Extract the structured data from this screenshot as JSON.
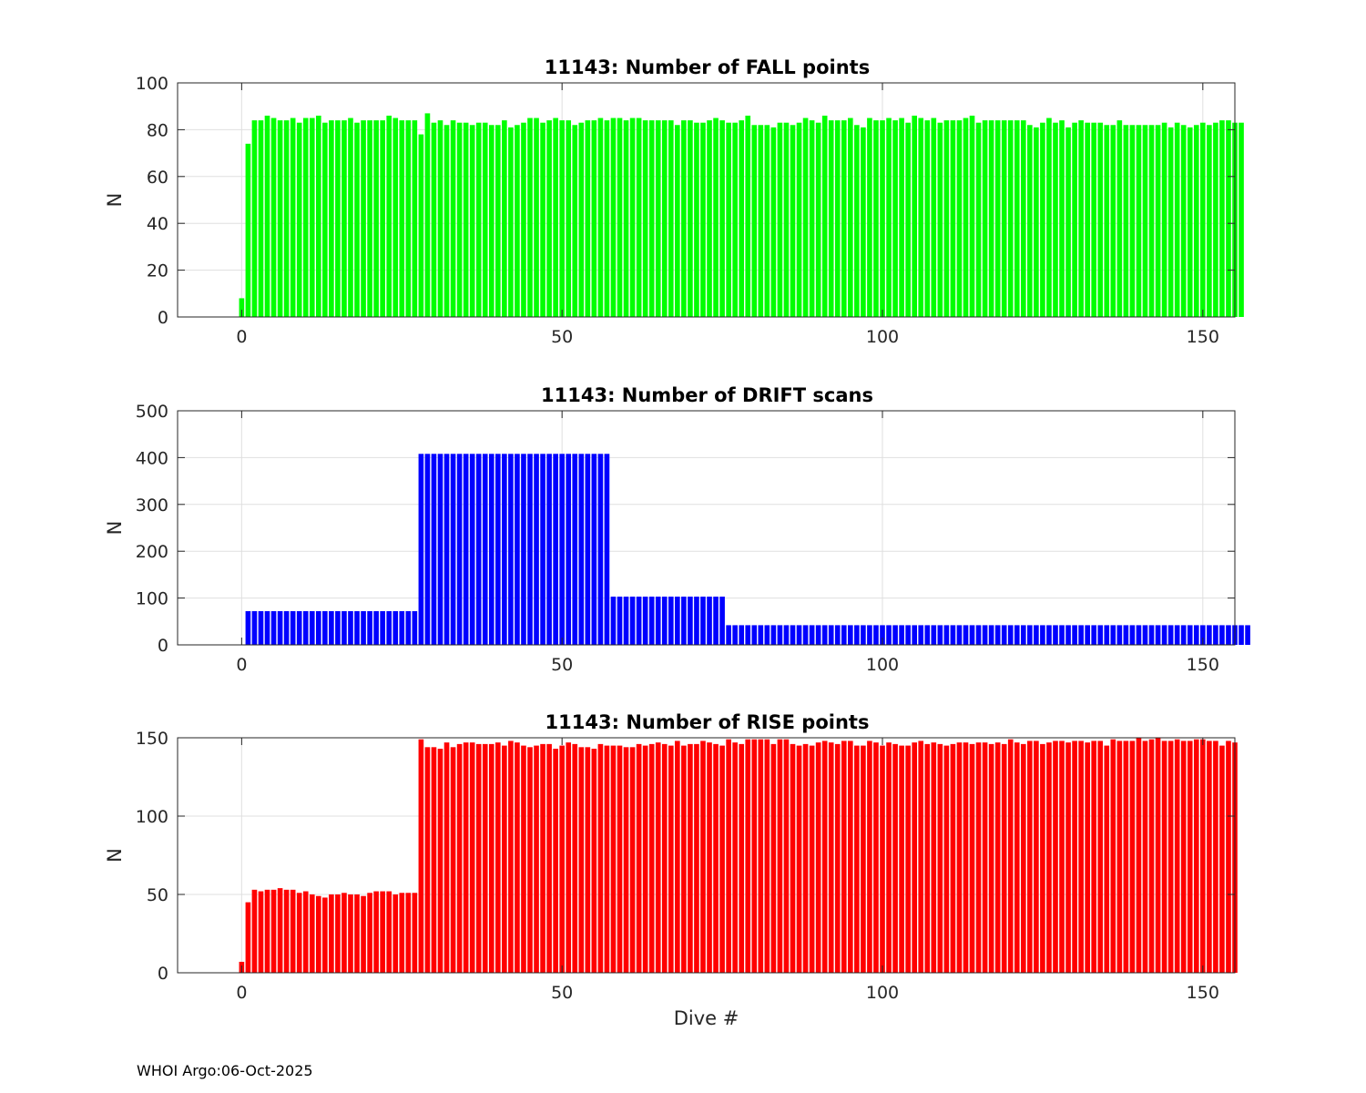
{
  "footer": "WHOI Argo:06-Oct-2025",
  "chart_data": [
    {
      "type": "bar",
      "title": "11143: Number of FALL points",
      "xlabel": "",
      "ylabel": "N",
      "xlim": [
        -10,
        155
      ],
      "ylim": [
        0,
        100
      ],
      "xticks": [
        0,
        50,
        100,
        150
      ],
      "yticks": [
        0,
        20,
        40,
        60,
        80,
        100
      ],
      "color": "#00ff00",
      "x_start": 0,
      "values": [
        8,
        74,
        84,
        84,
        86,
        85,
        84,
        84,
        85,
        83,
        85,
        85,
        86,
        83,
        84,
        84,
        84,
        85,
        83,
        84,
        84,
        84,
        84,
        86,
        85,
        84,
        84,
        84,
        78,
        87,
        83,
        84,
        82,
        84,
        83,
        83,
        82,
        83,
        83,
        82,
        82,
        84,
        81,
        82,
        83,
        85,
        85,
        83,
        84,
        85,
        84,
        84,
        82,
        83,
        84,
        84,
        85,
        84,
        85,
        85,
        84,
        85,
        85,
        84,
        84,
        84,
        84,
        84,
        82,
        84,
        84,
        83,
        83,
        84,
        85,
        84,
        83,
        83,
        84,
        86,
        82,
        82,
        82,
        81,
        83,
        83,
        82,
        83,
        85,
        84,
        83,
        86,
        84,
        84,
        84,
        85,
        82,
        81,
        85,
        84,
        84,
        85,
        84,
        85,
        83,
        86,
        85,
        84,
        85,
        83,
        84,
        84,
        84,
        85,
        86,
        83,
        84,
        84,
        84,
        84,
        84,
        84,
        84,
        82,
        81,
        83,
        85,
        83,
        84,
        81,
        83,
        84,
        83,
        83,
        83,
        82,
        82,
        84,
        82,
        82,
        82,
        82,
        82,
        82,
        83,
        81,
        83,
        82,
        81,
        82,
        83,
        82,
        83,
        84,
        84,
        83,
        83
      ]
    },
    {
      "type": "bar",
      "title": "11143: Number of DRIFT scans",
      "xlabel": "",
      "ylabel": "N",
      "xlim": [
        -10,
        155
      ],
      "ylim": [
        0,
        500
      ],
      "xticks": [
        0,
        50,
        100,
        150
      ],
      "yticks": [
        0,
        100,
        200,
        300,
        400,
        500
      ],
      "color": "#0000ff",
      "x_start": 0,
      "values": [
        0,
        72,
        72,
        72,
        72,
        72,
        72,
        72,
        72,
        72,
        72,
        72,
        72,
        72,
        72,
        72,
        72,
        72,
        72,
        72,
        72,
        72,
        72,
        72,
        72,
        72,
        72,
        72,
        408,
        408,
        408,
        408,
        408,
        408,
        408,
        408,
        408,
        408,
        408,
        408,
        408,
        408,
        408,
        408,
        408,
        408,
        408,
        408,
        408,
        408,
        408,
        408,
        408,
        408,
        408,
        408,
        408,
        408,
        103,
        103,
        103,
        103,
        103,
        103,
        103,
        103,
        103,
        103,
        103,
        103,
        103,
        103,
        103,
        103,
        103,
        103,
        42,
        42,
        42,
        42,
        42,
        42,
        42,
        42,
        42,
        42,
        42,
        42,
        42,
        42,
        42,
        42,
        42,
        42,
        42,
        42,
        42,
        42,
        42,
        42,
        42,
        42,
        42,
        42,
        42,
        42,
        42,
        42,
        42,
        42,
        42,
        42,
        42,
        42,
        42,
        42,
        42,
        42,
        42,
        42,
        42,
        42,
        42,
        42,
        42,
        42,
        42,
        42,
        42,
        42,
        42,
        42,
        42,
        42,
        42,
        42,
        42,
        42,
        42,
        42,
        42,
        42,
        42,
        42,
        42,
        42,
        42,
        42,
        42,
        42,
        42,
        42,
        42,
        42,
        42,
        42,
        42,
        42
      ]
    },
    {
      "type": "bar",
      "title": "11143: Number of RISE points",
      "xlabel": "Dive #",
      "ylabel": "N",
      "xlim": [
        -10,
        155
      ],
      "ylim": [
        0,
        150
      ],
      "xticks": [
        0,
        50,
        100,
        150
      ],
      "yticks": [
        0,
        50,
        100,
        150
      ],
      "color": "#ff0000",
      "x_start": 0,
      "values": [
        7,
        45,
        53,
        52,
        53,
        53,
        54,
        53,
        53,
        51,
        52,
        50,
        49,
        48,
        50,
        50,
        51,
        50,
        50,
        49,
        51,
        52,
        52,
        52,
        50,
        51,
        51,
        51,
        149,
        144,
        144,
        143,
        147,
        144,
        146,
        147,
        147,
        146,
        146,
        146,
        147,
        145,
        148,
        147,
        145,
        144,
        145,
        146,
        146,
        143,
        145,
        147,
        146,
        144,
        144,
        143,
        146,
        145,
        145,
        145,
        144,
        144,
        146,
        145,
        146,
        147,
        146,
        145,
        148,
        145,
        146,
        146,
        148,
        147,
        146,
        145,
        149,
        147,
        146,
        149,
        149,
        149,
        149,
        146,
        149,
        149,
        146,
        145,
        146,
        145,
        147,
        148,
        147,
        146,
        148,
        148,
        145,
        145,
        148,
        147,
        145,
        147,
        146,
        145,
        145,
        147,
        148,
        146,
        147,
        146,
        145,
        146,
        147,
        147,
        146,
        147,
        147,
        146,
        147,
        146,
        149,
        147,
        146,
        148,
        148,
        146,
        147,
        148,
        148,
        147,
        148,
        148,
        147,
        148,
        148,
        145,
        149,
        148,
        148,
        148,
        150,
        148,
        149,
        150,
        148,
        148,
        149,
        148,
        148,
        149,
        149,
        148,
        148,
        145,
        148,
        147
      ]
    }
  ]
}
